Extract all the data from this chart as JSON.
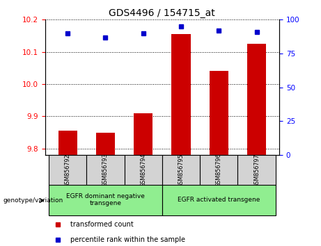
{
  "title": "GDS4496 / 154715_at",
  "samples": [
    "GSM856792",
    "GSM856793",
    "GSM856794",
    "GSM856795",
    "GSM856796",
    "GSM856797"
  ],
  "red_values": [
    9.855,
    9.848,
    9.91,
    10.155,
    10.04,
    10.125
  ],
  "blue_values": [
    90,
    87,
    90,
    95,
    92,
    91
  ],
  "ylim_left": [
    9.78,
    10.2
  ],
  "ylim_right": [
    0,
    100
  ],
  "yticks_left": [
    9.8,
    9.9,
    10.0,
    10.1,
    10.2
  ],
  "yticks_right": [
    0,
    25,
    50,
    75,
    100
  ],
  "group1_label": "EGFR dominant negative\ntransgene",
  "group2_label": "EGFR activated transgene",
  "group1_indices": [
    0,
    1,
    2
  ],
  "group2_indices": [
    3,
    4,
    5
  ],
  "bar_color": "#cc0000",
  "dot_color": "#0000cc",
  "group_bg_color": "#90ee90",
  "sample_bg_color": "#d3d3d3",
  "legend_red_label": "transformed count",
  "legend_blue_label": "percentile rank within the sample",
  "genotype_label": "genotype/variation"
}
